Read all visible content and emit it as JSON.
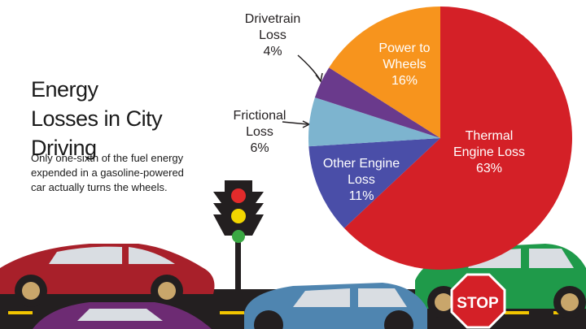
{
  "chart_data": {
    "type": "pie",
    "title": "Energy Losses in City Driving",
    "subtitle": "Only one-sixth of the fuel energy expended in a gasoline-powered car actually turns the wheels.",
    "categories": [
      "Thermal Engine Loss",
      "Other Engine Loss",
      "Frictional Loss",
      "Drivetrain Loss",
      "Power to Wheels"
    ],
    "values": [
      63,
      11,
      6,
      4,
      16
    ],
    "value_labels": [
      "63%",
      "11%",
      "6%",
      "4%",
      "16%"
    ],
    "colors": [
      "#d42027",
      "#4a4ea8",
      "#7db4cf",
      "#6a3a8c",
      "#f7941d"
    ]
  }
}
